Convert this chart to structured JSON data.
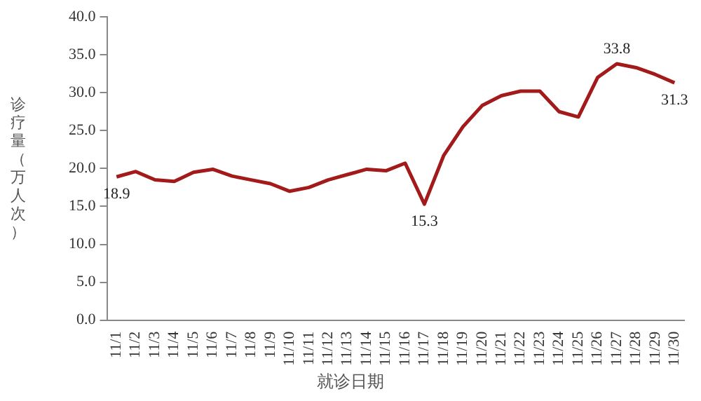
{
  "chart_data": {
    "type": "line",
    "xlabel": "就诊日期",
    "ylabel": "诊疗量（万人次）",
    "categories": [
      "11/1",
      "11/2",
      "11/3",
      "11/4",
      "11/5",
      "11/6",
      "11/7",
      "11/8",
      "11/9",
      "11/10",
      "11/11",
      "11/12",
      "11/13",
      "11/14",
      "11/15",
      "11/16",
      "11/17",
      "11/18",
      "11/19",
      "11/20",
      "11/21",
      "11/22",
      "11/23",
      "11/24",
      "11/25",
      "11/26",
      "11/27",
      "11/28",
      "11/29",
      "11/30"
    ],
    "series": [
      {
        "color": "#a31a1a",
        "values": [
          18.9,
          19.6,
          18.5,
          18.3,
          19.5,
          19.9,
          19.0,
          18.5,
          18.0,
          17.0,
          17.5,
          18.5,
          19.2,
          19.9,
          19.7,
          20.7,
          15.3,
          21.7,
          25.5,
          28.3,
          29.6,
          30.2,
          30.2,
          27.5,
          26.8,
          32.0,
          33.8,
          33.3,
          32.4,
          31.3
        ],
        "value_labels": [
          "18.9",
          null,
          null,
          null,
          null,
          null,
          null,
          null,
          null,
          null,
          null,
          null,
          null,
          null,
          null,
          null,
          "15.3",
          null,
          null,
          null,
          null,
          null,
          null,
          null,
          null,
          null,
          "33.8",
          null,
          null,
          "31.3"
        ]
      }
    ],
    "ylim": [
      0,
      40
    ],
    "yticks": [
      {
        "value": 0,
        "label": "0.0"
      },
      {
        "value": 5,
        "label": "5.0"
      },
      {
        "value": 10,
        "label": "10.0"
      },
      {
        "value": 15,
        "label": "15.0"
      },
      {
        "value": 20,
        "label": "20.0"
      },
      {
        "value": 25,
        "label": "25.0"
      },
      {
        "value": 30,
        "label": "30.0"
      },
      {
        "value": 35,
        "label": "35.0"
      },
      {
        "value": 40,
        "label": "40.0"
      }
    ],
    "grid": false,
    "legend": false,
    "marker": "none",
    "line_style": "solid"
  }
}
